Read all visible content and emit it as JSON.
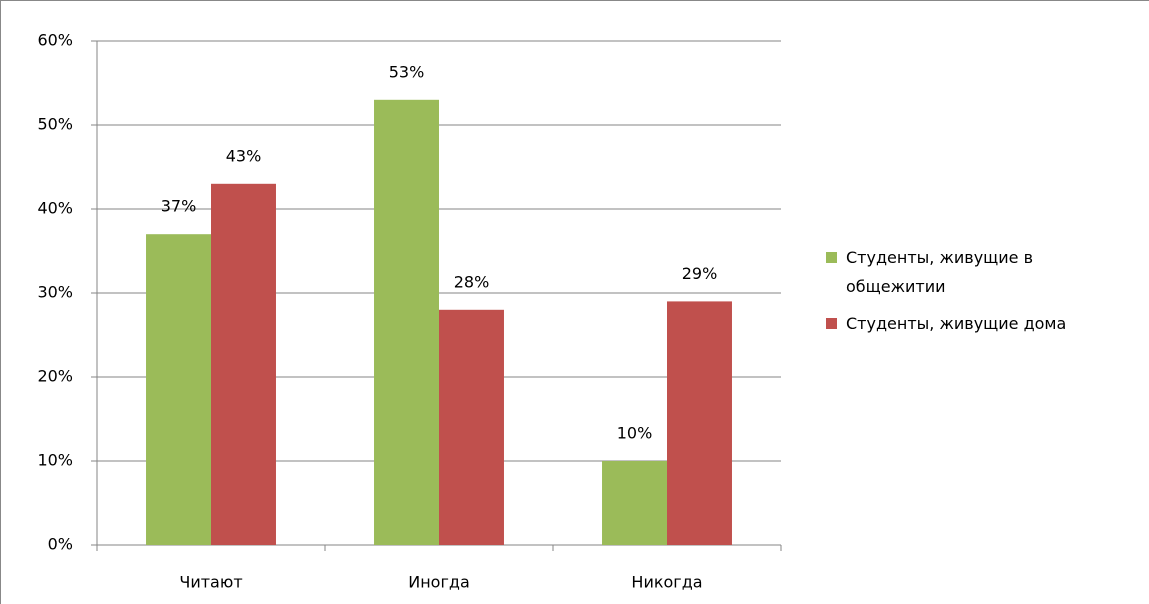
{
  "chart_data": {
    "type": "bar",
    "categories": [
      "Читают",
      "Иногда",
      "Никогда"
    ],
    "series": [
      {
        "name": "Студенты, живущие в общежитии",
        "color": "#9bbb59",
        "values": [
          37,
          53,
          10
        ],
        "value_labels": [
          "37%",
          "53%",
          "10%"
        ]
      },
      {
        "name": "Студенты, живущие дома",
        "color": "#c0504d",
        "values": [
          43,
          28,
          29
        ],
        "value_labels": [
          "43%",
          "28%",
          "29%"
        ]
      }
    ],
    "ylim": [
      0,
      60
    ],
    "yticks": [
      {
        "value": 0,
        "label": "0%"
      },
      {
        "value": 10,
        "label": "10%"
      },
      {
        "value": 20,
        "label": "20%"
      },
      {
        "value": 30,
        "label": "30%"
      },
      {
        "value": 40,
        "label": "40%"
      },
      {
        "value": 50,
        "label": "50%"
      },
      {
        "value": 60,
        "label": "60%"
      }
    ],
    "grid": true,
    "legend": "right"
  }
}
